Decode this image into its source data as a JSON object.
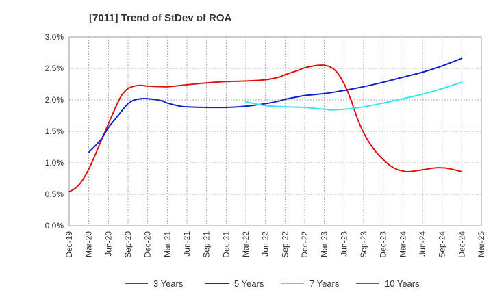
{
  "chart_data": {
    "type": "line",
    "title": "[7011]  Trend of StDev of ROA",
    "xlabel": "",
    "ylabel": "",
    "x_ticks": [
      "Dec-19",
      "Mar-20",
      "Jun-20",
      "Sep-20",
      "Dec-20",
      "Mar-21",
      "Jun-21",
      "Sep-21",
      "Dec-21",
      "Mar-22",
      "Jun-22",
      "Sep-22",
      "Dec-22",
      "Mar-23",
      "Jun-23",
      "Sep-23",
      "Dec-23",
      "Mar-24",
      "Jun-24",
      "Sep-24",
      "Dec-24",
      "Mar-25"
    ],
    "y_ticks": [
      "0.0%",
      "0.5%",
      "1.0%",
      "1.5%",
      "2.0%",
      "2.5%",
      "3.0%"
    ],
    "ylim": [
      0,
      3.0
    ],
    "grid": true,
    "legend_position": "bottom",
    "series": [
      {
        "name": "3 Years",
        "color": "#dd1111",
        "points": [
          [
            "Dec-19",
            0.54
          ],
          [
            "Jan-20",
            0.6
          ],
          [
            "Feb-20",
            0.72
          ],
          [
            "Mar-20",
            0.9
          ],
          [
            "Apr-20",
            1.13
          ],
          [
            "May-20",
            1.38
          ],
          [
            "Jun-20",
            1.62
          ],
          [
            "Jul-20",
            1.86
          ],
          [
            "Aug-20",
            2.07
          ],
          [
            "Sep-20",
            2.18
          ],
          [
            "Oct-20",
            2.22
          ],
          [
            "Nov-20",
            2.23
          ],
          [
            "Dec-20",
            2.22
          ],
          [
            "Mar-21",
            2.21
          ],
          [
            "Jun-21",
            2.24
          ],
          [
            "Sep-21",
            2.27
          ],
          [
            "Dec-21",
            2.29
          ],
          [
            "Mar-22",
            2.3
          ],
          [
            "Jun-22",
            2.32
          ],
          [
            "Aug-22",
            2.36
          ],
          [
            "Sep-22",
            2.4
          ],
          [
            "Nov-22",
            2.47
          ],
          [
            "Dec-22",
            2.51
          ],
          [
            "Feb-23",
            2.55
          ],
          [
            "Mar-23",
            2.55
          ],
          [
            "Apr-23",
            2.52
          ],
          [
            "May-23",
            2.43
          ],
          [
            "Jun-23",
            2.26
          ],
          [
            "Jul-23",
            2.02
          ],
          [
            "Aug-23",
            1.72
          ],
          [
            "Sep-23",
            1.48
          ],
          [
            "Oct-23",
            1.3
          ],
          [
            "Nov-23",
            1.16
          ],
          [
            "Dec-23",
            1.05
          ],
          [
            "Jan-24",
            0.96
          ],
          [
            "Feb-24",
            0.9
          ],
          [
            "Mar-24",
            0.87
          ],
          [
            "Apr-24",
            0.86
          ],
          [
            "Jun-24",
            0.89
          ],
          [
            "Aug-24",
            0.92
          ],
          [
            "Sep-24",
            0.92
          ],
          [
            "Oct-24",
            0.91
          ],
          [
            "Dec-24",
            0.86
          ]
        ]
      },
      {
        "name": "5 Years",
        "color": "#1122cc",
        "points": [
          [
            "Dec-19",
            null
          ],
          [
            "Mar-20",
            1.17
          ],
          [
            "Apr-20",
            1.27
          ],
          [
            "May-20",
            1.39
          ],
          [
            "Jun-20",
            1.56
          ],
          [
            "Jul-20",
            1.69
          ],
          [
            "Aug-20",
            1.82
          ],
          [
            "Sep-20",
            1.94
          ],
          [
            "Oct-20",
            2.0
          ],
          [
            "Nov-20",
            2.02
          ],
          [
            "Dec-20",
            2.02
          ],
          [
            "Feb-21",
            1.99
          ],
          [
            "Mar-21",
            1.95
          ],
          [
            "May-21",
            1.9
          ],
          [
            "Jun-21",
            1.89
          ],
          [
            "Sep-21",
            1.88
          ],
          [
            "Dec-21",
            1.88
          ],
          [
            "Mar-22",
            1.9
          ],
          [
            "Jun-22",
            1.94
          ],
          [
            "Aug-22",
            1.98
          ],
          [
            "Sep-22",
            2.01
          ],
          [
            "Nov-22",
            2.05
          ],
          [
            "Dec-22",
            2.07
          ],
          [
            "Mar-23",
            2.1
          ],
          [
            "Jun-23",
            2.15
          ],
          [
            "Sep-23",
            2.21
          ],
          [
            "Dec-23",
            2.28
          ],
          [
            "Mar-24",
            2.36
          ],
          [
            "Jun-24",
            2.44
          ],
          [
            "Sep-24",
            2.54
          ],
          [
            "Dec-24",
            2.66
          ]
        ]
      },
      {
        "name": "7 Years",
        "color": "#33e6ee",
        "points": [
          [
            "Dec-19",
            null
          ],
          [
            "Mar-22",
            1.97
          ],
          [
            "Jun-22",
            1.91
          ],
          [
            "Sep-22",
            1.89
          ],
          [
            "Dec-22",
            1.88
          ],
          [
            "Mar-23",
            1.85
          ],
          [
            "Apr-23",
            1.84
          ],
          [
            "Jun-23",
            1.85
          ],
          [
            "Sep-23",
            1.89
          ],
          [
            "Dec-23",
            1.95
          ],
          [
            "Mar-24",
            2.02
          ],
          [
            "Jun-24",
            2.09
          ],
          [
            "Sep-24",
            2.18
          ],
          [
            "Dec-24",
            2.28
          ]
        ]
      },
      {
        "name": "10 Years",
        "color": "#228822",
        "points": []
      }
    ]
  }
}
